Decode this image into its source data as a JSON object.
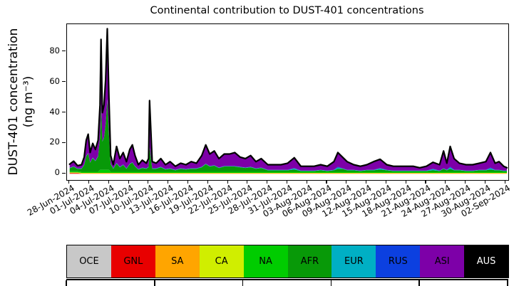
{
  "figure": {
    "title": "Continental contribution to DUST-401 concentrations"
  },
  "chart_data": {
    "type": "area",
    "stacked": true,
    "title": "Continental contribution to DUST-401 concentrations",
    "xlabel": "",
    "ylabel": "DUST-401 concentration (ng m⁻³)",
    "ylabel_lines": [
      "DUST-401 concentration",
      "(ng m⁻³)"
    ],
    "x_unit": "days since 28-Jun-2024",
    "grid": false,
    "legend_position": "bottom-strip",
    "outline_color": "#000000",
    "xlim": [
      -0.4,
      66.4
    ],
    "ylim": [
      -4,
      98
    ],
    "yticks": [
      0,
      20,
      40,
      60,
      80
    ],
    "xtick_days": [
      0,
      3,
      6,
      9,
      12,
      15,
      18,
      21,
      24,
      27,
      30,
      33,
      36,
      39,
      42,
      45,
      48,
      51,
      54,
      57,
      60,
      63,
      66
    ],
    "xtick_labels": [
      "28-Jun-2024",
      "01-Jul-2024",
      "04-Jul-2024",
      "07-Jul-2024",
      "10-Jul-2024",
      "13-Jul-2024",
      "16-Jul-2024",
      "19-Jul-2024",
      "22-Jul-2024",
      "25-Jul-2024",
      "28-Jul-2024",
      "31-Jul-2024",
      "03-Aug-2024",
      "06-Aug-2024",
      "09-Aug-2024",
      "12-Aug-2024",
      "15-Aug-2024",
      "18-Aug-2024",
      "21-Aug-2024",
      "24-Aug-2024",
      "27-Aug-2024",
      "30-Aug-2024",
      "02-Sep-2024"
    ],
    "x": [
      0,
      0.6,
      1.2,
      1.8,
      2.2,
      2.5,
      2.8,
      3.1,
      3.5,
      3.9,
      4.3,
      4.6,
      4.75,
      4.95,
      5.2,
      5.45,
      5.7,
      5.95,
      6.2,
      6.6,
      7.1,
      7.6,
      8.1,
      8.6,
      9.1,
      9.5,
      9.9,
      10.4,
      11,
      11.6,
      11.95,
      12.1,
      12.5,
      13.1,
      13.8,
      14.5,
      15.2,
      16,
      16.8,
      17.6,
      18.4,
      19.2,
      20,
      20.6,
      21.2,
      21.9,
      22.6,
      23.4,
      24.2,
      25,
      25.8,
      26.6,
      27.4,
      28.2,
      29,
      30,
      31,
      32,
      33,
      34,
      35,
      36,
      37,
      38,
      39,
      40,
      40.6,
      41.3,
      42,
      43,
      44,
      45,
      46,
      47,
      48,
      49,
      50,
      51,
      52,
      53,
      54,
      55,
      56,
      56.6,
      57.1,
      57.6,
      58.2,
      59,
      60,
      61,
      62,
      63,
      63.7,
      64.4,
      65,
      65.7,
      66.2
    ],
    "series": [
      {
        "name": "OCE",
        "color": "#c8c8c8",
        "values": [
          0.05,
          0.05,
          0.05,
          0.05,
          0.05,
          0.05,
          0.05,
          0.05,
          0.05,
          0.05,
          0.05,
          0.05,
          0.05,
          0.05,
          0.05,
          0.05,
          0.05,
          0.05,
          0.05,
          0.05,
          0.05,
          0.05,
          0.05,
          0.05,
          0.05,
          0.05,
          0.05,
          0.05,
          0.05,
          0.05,
          0.05,
          0.05,
          0.05,
          0.05,
          0.05,
          0.05,
          0.05,
          0.05,
          0.05,
          0.05,
          0.05,
          0.05,
          0.05,
          0.05,
          0.05,
          0.05,
          0.05,
          0.05,
          0.05,
          0.05,
          0.05,
          0.05,
          0.05,
          0.05,
          0.05,
          0.05,
          0.05,
          0.05,
          0.05,
          0.05,
          0.05,
          0.05,
          0.05,
          0.05,
          0.05,
          0.05,
          0.05,
          0.05,
          0.05,
          0.05,
          0.05,
          0.05,
          0.05,
          0.05,
          0.05,
          0.05,
          0.05,
          0.05,
          0.05,
          0.05,
          0.05,
          0.05,
          0.05,
          0.05,
          0.05,
          0.05,
          0.05,
          0.05,
          0.05,
          0.05,
          0.05,
          0.05,
          0.05,
          0.05,
          0.05,
          0.05,
          0.05
        ]
      },
      {
        "name": "GNL",
        "color": "#e80000",
        "values": [
          0.4,
          0.4,
          0.4,
          0.05,
          0.05,
          0.05,
          0.05,
          0.05,
          0.05,
          0.05,
          0.05,
          0.05,
          0.05,
          0.05,
          0.05,
          0.05,
          0.05,
          0.05,
          0.05,
          0.05,
          0.05,
          0.05,
          0.05,
          0.05,
          0.05,
          0.05,
          0.05,
          0.05,
          0.05,
          0.05,
          0.05,
          0.05,
          0.05,
          0.05,
          0.05,
          0.05,
          0.05,
          0.05,
          0.05,
          0.05,
          0.05,
          0.05,
          0.05,
          0.05,
          0.05,
          0.05,
          0.05,
          0.05,
          0.05,
          0.05,
          0.05,
          0.05,
          0.05,
          0.05,
          0.05,
          0.05,
          0.05,
          0.05,
          0.05,
          0.05,
          0.05,
          0.05,
          0.05,
          0.05,
          0.05,
          0.05,
          0.05,
          0.05,
          0.05,
          0.05,
          0.05,
          0.05,
          0.05,
          0.05,
          0.05,
          0.05,
          0.05,
          0.05,
          0.05,
          0.05,
          0.05,
          0.05,
          0.05,
          0.05,
          0.05,
          0.05,
          0.05,
          0.05,
          0.05,
          0.05,
          0.05,
          0.05,
          0.05,
          0.05,
          0.05,
          0.05,
          0.05
        ]
      },
      {
        "name": "SA",
        "color": "#ffa500",
        "values": [
          0.4,
          0.4,
          0.4,
          0.4,
          0.4,
          0.4,
          0.4,
          0.4,
          0.4,
          0.4,
          0.4,
          0.4,
          0.4,
          0.4,
          0.4,
          0.4,
          0.4,
          0.4,
          0.4,
          0.4,
          0.4,
          0.4,
          0.4,
          0.4,
          0.4,
          0.4,
          0.4,
          0.4,
          0.4,
          0.4,
          0.4,
          0.4,
          0.4,
          0.4,
          0.4,
          0.4,
          0.4,
          0.4,
          0.4,
          0.4,
          0.4,
          0.4,
          0.4,
          0.4,
          0.4,
          0.4,
          0.4,
          0.4,
          0.4,
          0.4,
          0.4,
          0.4,
          0.4,
          0.4,
          0.4,
          0.4,
          0.4,
          0.4,
          0.4,
          0.4,
          0.4,
          0.4,
          0.4,
          0.4,
          0.4,
          0.4,
          0.4,
          0.4,
          0.4,
          0.4,
          0.4,
          0.4,
          0.4,
          0.4,
          0.4,
          0.4,
          0.4,
          0.4,
          0.4,
          0.4,
          0.4,
          0.4,
          0.4,
          0.4,
          0.4,
          0.4,
          0.4,
          0.4,
          0.4,
          0.4,
          0.4,
          0.4,
          0.4,
          0.4,
          0.4,
          0.4,
          0.4
        ]
      },
      {
        "name": "CA",
        "color": "#d0ee00",
        "values": [
          0.15,
          0.15,
          0.15,
          0.15,
          0.15,
          0.15,
          0.15,
          0.15,
          0.15,
          0.15,
          0.15,
          0.15,
          0.15,
          0.15,
          0.15,
          0.15,
          0.15,
          0.15,
          0.15,
          0.15,
          0.15,
          0.15,
          0.15,
          0.15,
          0.15,
          0.15,
          0.15,
          0.15,
          0.15,
          0.15,
          0.15,
          0.15,
          0.15,
          0.15,
          0.15,
          0.15,
          0.15,
          0.15,
          0.15,
          0.15,
          0.15,
          0.15,
          0.15,
          0.15,
          0.15,
          0.15,
          0.15,
          0.15,
          0.15,
          0.15,
          0.15,
          0.15,
          0.15,
          0.15,
          0.15,
          0.15,
          0.15,
          0.15,
          0.15,
          0.15,
          0.15,
          0.15,
          0.15,
          0.15,
          0.15,
          0.15,
          0.15,
          0.15,
          0.15,
          0.15,
          0.15,
          0.15,
          0.15,
          0.15,
          0.15,
          0.15,
          0.15,
          0.15,
          0.15,
          0.15,
          0.15,
          0.15,
          0.15,
          0.15,
          0.15,
          0.15,
          0.15,
          0.15,
          0.15,
          0.15,
          0.15,
          0.15,
          0.15,
          0.15,
          0.15,
          0.15,
          0.15
        ]
      },
      {
        "name": "NA",
        "color": "#00cc00",
        "values": [
          0.7,
          0.7,
          0.7,
          0.7,
          0.7,
          0.7,
          0.7,
          0.7,
          0.7,
          0.7,
          0.7,
          2,
          2,
          2,
          2,
          2,
          2,
          2,
          0.7,
          0.7,
          0.7,
          0.7,
          0.7,
          0.7,
          0.7,
          0.7,
          0.7,
          0.7,
          0.7,
          0.7,
          0.7,
          0.7,
          0.7,
          0.7,
          0.7,
          0.7,
          0.7,
          0.7,
          0.7,
          0.7,
          0.7,
          0.7,
          0.7,
          0.7,
          0.7,
          0.7,
          0.7,
          0.7,
          0.7,
          0.7,
          0.7,
          0.7,
          0.7,
          0.7,
          0.7,
          0.7,
          0.7,
          0.7,
          0.7,
          0.7,
          0.7,
          0.7,
          0.7,
          0.7,
          0.7,
          0.7,
          0.7,
          0.7,
          0.7,
          0.7,
          0.7,
          0.7,
          0.7,
          0.7,
          0.7,
          0.7,
          0.7,
          0.7,
          0.7,
          0.7,
          0.7,
          0.7,
          0.7,
          0.7,
          0.7,
          0.7,
          0.7,
          0.7,
          0.7,
          0.7,
          0.7,
          0.7,
          0.7,
          0.7,
          0.7,
          0.7,
          0.7
        ]
      },
      {
        "name": "AFR",
        "color": "#089908",
        "values": [
          2,
          3,
          1.5,
          2,
          4.5,
          10,
          12,
          6,
          9,
          7,
          10,
          21,
          43,
          18.5,
          21,
          30,
          46,
          23.5,
          5,
          2,
          5.5,
          3,
          4.5,
          2,
          5,
          6,
          3.5,
          1.5,
          2.5,
          2,
          3,
          16,
          2,
          2,
          3,
          1.5,
          2,
          1,
          2,
          1.5,
          2,
          2,
          3,
          5,
          3.5,
          4,
          2.5,
          3.5,
          3.5,
          3.5,
          3,
          2.5,
          3,
          2,
          2.5,
          1,
          1,
          1,
          1,
          1.5,
          0.5,
          0.5,
          0.5,
          1,
          0.5,
          1,
          2,
          2,
          1,
          1,
          0.5,
          1,
          1,
          1.5,
          1,
          0.5,
          0.5,
          0.5,
          0.5,
          0.5,
          0.5,
          1,
          0.5,
          2,
          1,
          2,
          1,
          1,
          0.5,
          0.5,
          1,
          1,
          1.5,
          1,
          1,
          0.5,
          0.5
        ]
      },
      {
        "name": "EUR",
        "color": "#00afc4",
        "values": [
          0.2,
          0.2,
          0.2,
          0.2,
          0.2,
          0.2,
          0.2,
          0.2,
          0.2,
          0.2,
          0.2,
          0.2,
          0.2,
          0.2,
          0.2,
          0.2,
          0.2,
          0.2,
          0.2,
          0.2,
          0.2,
          0.2,
          0.2,
          0.2,
          0.2,
          0.2,
          0.2,
          0.2,
          0.2,
          0.2,
          0.2,
          0.2,
          0.2,
          0.2,
          0.2,
          0.2,
          0.2,
          0.2,
          0.2,
          0.2,
          0.2,
          0.2,
          0.2,
          0.2,
          0.2,
          0.2,
          0.2,
          0.2,
          0.2,
          0.2,
          0.2,
          0.2,
          0.2,
          0.2,
          0.2,
          0.2,
          0.2,
          0.2,
          0.2,
          0.8,
          0.2,
          0.2,
          0.2,
          0.2,
          0.2,
          0.2,
          0.8,
          0.2,
          0.2,
          0.2,
          0.2,
          0.2,
          0.2,
          0.8,
          0.2,
          0.2,
          0.2,
          0.2,
          0.2,
          0.2,
          0.2,
          0.8,
          0.2,
          0.2,
          0.2,
          0.8,
          0.2,
          0.2,
          0.2,
          0.2,
          0.2,
          0.2,
          0.8,
          0.2,
          0.2,
          0.2,
          0.2
        ]
      },
      {
        "name": "RUS",
        "color": "#0c40e0",
        "values": [
          0.1,
          0.1,
          0.1,
          0.1,
          0.1,
          0.1,
          0.1,
          0.1,
          0.1,
          0.1,
          0.1,
          0.1,
          0.1,
          0.1,
          0.1,
          0.1,
          0.1,
          0.1,
          0.1,
          0.1,
          0.1,
          0.1,
          0.1,
          0.1,
          0.1,
          0.1,
          0.1,
          0.1,
          0.1,
          0.1,
          0.1,
          0.1,
          0.1,
          0.1,
          0.1,
          0.1,
          0.1,
          0.1,
          0.1,
          0.1,
          0.1,
          0.1,
          0.1,
          0.1,
          0.1,
          0.1,
          0.1,
          0.1,
          0.1,
          0.1,
          0.1,
          0.1,
          0.1,
          0.1,
          0.1,
          0.1,
          0.1,
          0.1,
          0.1,
          0.1,
          0.1,
          0.1,
          0.1,
          0.1,
          0.1,
          0.1,
          0.5,
          0.1,
          0.1,
          0.1,
          0.1,
          0.1,
          0.1,
          0.1,
          0.1,
          0.1,
          0.1,
          0.1,
          0.1,
          0.1,
          0.1,
          0.1,
          0.1,
          0.1,
          0.1,
          0.5,
          0.1,
          0.1,
          0.1,
          0.1,
          0.1,
          0.1,
          0.5,
          0.1,
          0.1,
          0.1,
          0.1
        ]
      },
      {
        "name": "ASI",
        "color": "#7d00a8",
        "values": [
          2.25,
          3.25,
          1.75,
          2.25,
          4.75,
          10.25,
          12.25,
          6.25,
          9.25,
          7.25,
          10.25,
          21,
          42,
          18.5,
          21,
          29,
          46,
          23.5,
          5.25,
          2.25,
          10.75,
          5.25,
          7.75,
          4.25,
          9.25,
          11.25,
          6.75,
          2.75,
          4.75,
          3.25,
          5.25,
          30.25,
          4.25,
          3.25,
          5.25,
          2.75,
          4.25,
          2.25,
          3.25,
          2.75,
          4.25,
          3.25,
          7.25,
          12.25,
          7.75,
          9.25,
          5.75,
          7.75,
          7.75,
          8.75,
          6.25,
          5.75,
          7.25,
          4.25,
          5.75,
          3.25,
          3.25,
          3.25,
          4.25,
          6.75,
          2.75,
          2.75,
          2.75,
          3.25,
          2.75,
          5.25,
          9.25,
          7.25,
          5.25,
          3.25,
          2.75,
          3.25,
          5.25,
          5.75,
          3.25,
          2.75,
          2.75,
          2.75,
          2.75,
          1.75,
          2.75,
          4.25,
          3.75,
          11.25,
          4.25,
          13.25,
          7.25,
          4.25,
          3.75,
          3.75,
          4.25,
          5.25,
          9.75,
          4.25,
          5.25,
          2.75,
          1.75
        ]
      },
      {
        "name": "AUS",
        "color": "#000000",
        "values": [
          0.1,
          0.1,
          0.1,
          0.1,
          0.1,
          0.1,
          0.1,
          0.1,
          0.1,
          0.1,
          0.1,
          0.1,
          0.1,
          0.1,
          0.1,
          0.1,
          0.1,
          0.1,
          0.1,
          0.1,
          0.1,
          0.1,
          0.1,
          0.1,
          0.1,
          0.1,
          0.1,
          0.1,
          0.1,
          0.1,
          0.1,
          0.1,
          0.1,
          0.1,
          0.1,
          0.1,
          0.1,
          0.1,
          0.1,
          0.1,
          0.1,
          0.1,
          0.1,
          0.1,
          0.1,
          0.1,
          0.1,
          0.1,
          0.1,
          0.1,
          0.1,
          0.1,
          0.1,
          0.1,
          0.1,
          0.1,
          0.1,
          0.1,
          0.1,
          0.1,
          0.1,
          0.1,
          0.1,
          0.1,
          0.1,
          0.1,
          0.1,
          0.1,
          0.1,
          0.1,
          0.1,
          0.1,
          0.1,
          0.1,
          0.1,
          0.1,
          0.1,
          0.1,
          0.1,
          0.1,
          0.1,
          0.1,
          0.1,
          0.1,
          0.1,
          0.1,
          0.1,
          0.1,
          0.1,
          0.1,
          0.1,
          0.1,
          0.1,
          0.1,
          0.1,
          0.1,
          0.1
        ]
      }
    ]
  },
  "legend": {
    "entries": [
      {
        "label": "OCE",
        "color": "#c8c8c8",
        "text_color": "#000000"
      },
      {
        "label": "GNL",
        "color": "#e80000",
        "text_color": "#000000"
      },
      {
        "label": "SA",
        "color": "#ffa500",
        "text_color": "#000000"
      },
      {
        "label": "CA",
        "color": "#d0ee00",
        "text_color": "#000000"
      },
      {
        "label": "NA",
        "color": "#00cc00",
        "text_color": "#000000"
      },
      {
        "label": "AFR",
        "color": "#089908",
        "text_color": "#000000"
      },
      {
        "label": "EUR",
        "color": "#00afc4",
        "text_color": "#000000"
      },
      {
        "label": "RUS",
        "color": "#0c40e0",
        "text_color": "#000000"
      },
      {
        "label": "ASI",
        "color": "#7d00a8",
        "text_color": "#000000"
      },
      {
        "label": "AUS",
        "color": "#000000",
        "text_color": "#ffffff"
      }
    ]
  }
}
